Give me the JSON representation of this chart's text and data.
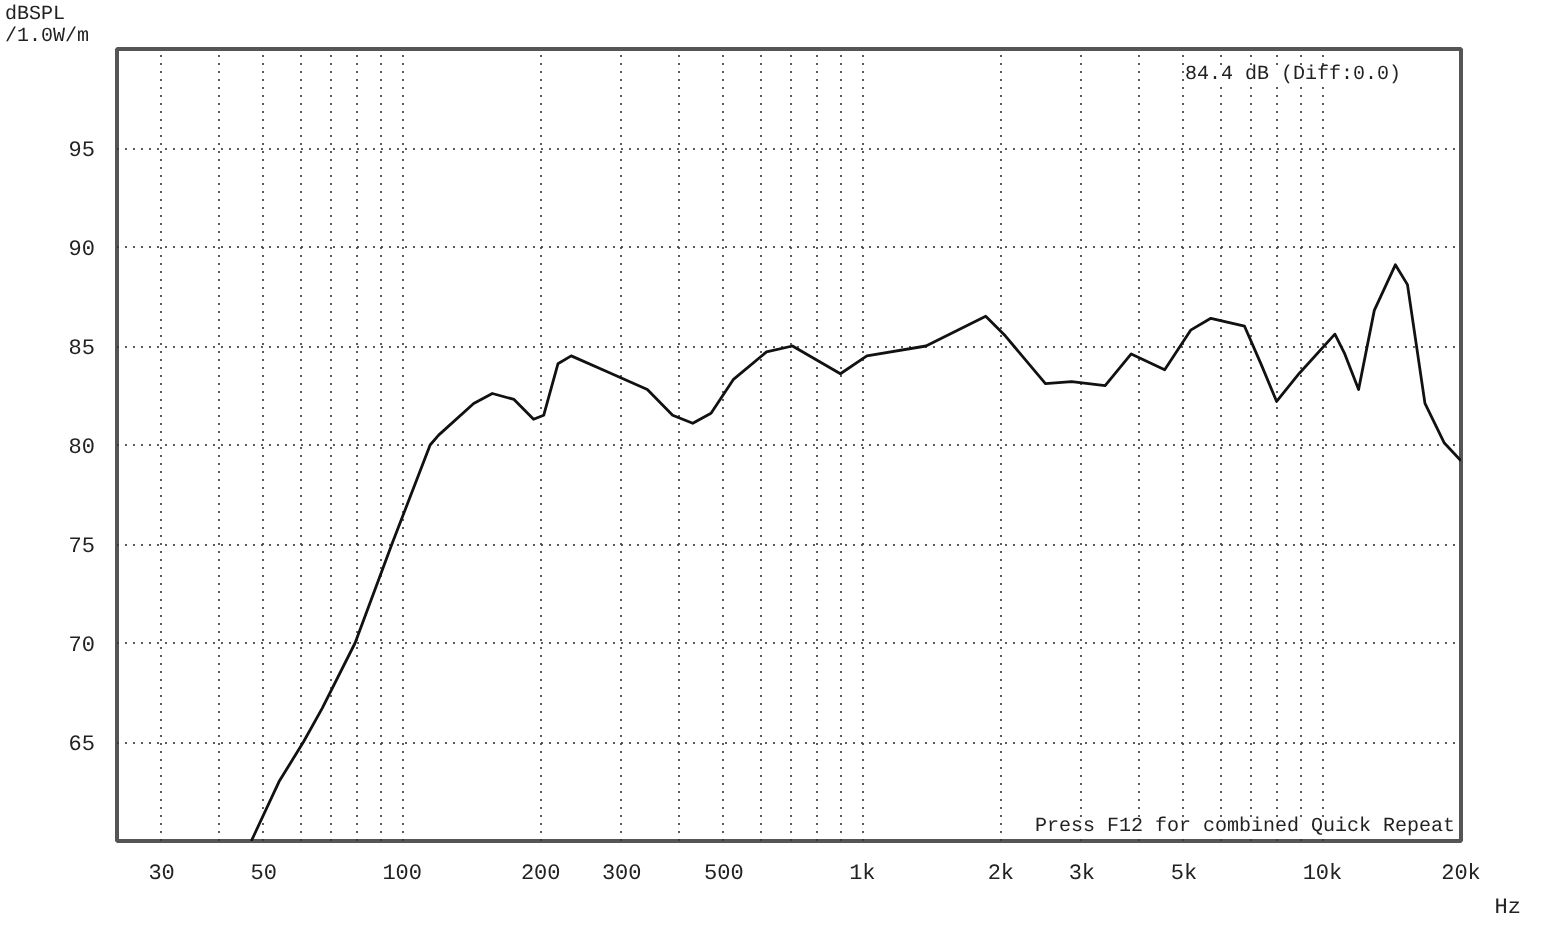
{
  "chart_data": {
    "type": "line",
    "ylabel": "dBSPL\n/1.0W/m",
    "annotations": [
      "84.4 dB (Diff:0.0)",
      "Press F12 for combined Quick Repeat"
    ],
    "xlabel": "Hz",
    "log": "x",
    "grid": true,
    "marker": "none",
    "line_style": "solid",
    "xlim": [
      24,
      20000
    ],
    "ylim": [
      60,
      100
    ],
    "xticks": [
      {
        "value": 30,
        "label": "30"
      },
      {
        "value": 40,
        "label": null
      },
      {
        "value": 50,
        "label": "50"
      },
      {
        "value": 60,
        "label": null
      },
      {
        "value": 70,
        "label": null
      },
      {
        "value": 80,
        "label": null
      },
      {
        "value": 90,
        "label": null
      },
      {
        "value": 100,
        "label": "100"
      },
      {
        "value": 200,
        "label": "200"
      },
      {
        "value": 300,
        "label": "300"
      },
      {
        "value": 400,
        "label": null
      },
      {
        "value": 500,
        "label": "500"
      },
      {
        "value": 600,
        "label": null
      },
      {
        "value": 700,
        "label": null
      },
      {
        "value": 800,
        "label": null
      },
      {
        "value": 900,
        "label": null
      },
      {
        "value": 1000,
        "label": "1k"
      },
      {
        "value": 2000,
        "label": "2k"
      },
      {
        "value": 3000,
        "label": "3k"
      },
      {
        "value": 4000,
        "label": null
      },
      {
        "value": 5000,
        "label": "5k"
      },
      {
        "value": 6000,
        "label": null
      },
      {
        "value": 7000,
        "label": null
      },
      {
        "value": 8000,
        "label": null
      },
      {
        "value": 9000,
        "label": null
      },
      {
        "value": 10000,
        "label": "10k"
      },
      {
        "value": 20000,
        "label": "20k"
      }
    ],
    "yticks": [
      65,
      70,
      75,
      80,
      85,
      90,
      95
    ],
    "series": [
      {
        "color": "#111111",
        "x": [
          47,
          54,
          61,
          67,
          79,
          95,
          101,
          115,
          120,
          143,
          157,
          175,
          193,
          203,
          218,
          233,
          279,
          341,
          387,
          428,
          469,
          524,
          619,
          705,
          896,
          1023,
          1375,
          1854,
          2047,
          2500,
          2850,
          3370,
          3840,
          4540,
          5170,
          5720,
          6770,
          7350,
          7950,
          8890,
          10640,
          11180,
          11980,
          12960,
          14400,
          15300,
          16700,
          18400,
          20000
        ],
        "values": [
          60,
          63,
          65,
          66.7,
          70,
          75,
          76.6,
          80,
          80.5,
          82.1,
          82.6,
          82.3,
          81.3,
          81.5,
          84.1,
          84.5,
          83.7,
          82.8,
          81.5,
          81.1,
          81.6,
          83.3,
          84.7,
          85,
          83.6,
          84.5,
          85,
          86.5,
          85.5,
          83.1,
          83.2,
          83,
          84.6,
          83.8,
          85.8,
          86.4,
          86,
          84.1,
          82.2,
          83.6,
          85.6,
          84.6,
          82.8,
          86.8,
          89.1,
          88.1,
          82.1,
          80.1,
          79.2
        ]
      }
    ]
  }
}
